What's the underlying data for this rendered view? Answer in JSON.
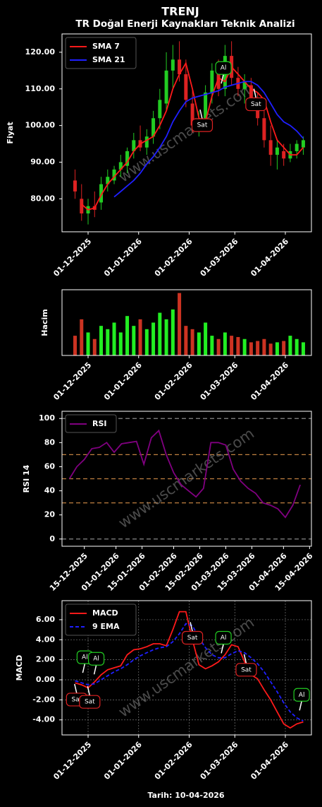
{
  "title": "TRENJ",
  "subtitle": "TR Doğal Enerji Kaynakları Teknik Analizi",
  "xlabel": "Tarih: 10-04-2026",
  "watermark": "www.uscmarkets.com",
  "chart_data": [
    {
      "type": "candlestick",
      "ylabel": "Fiyat",
      "legend": "upper left",
      "x": [
        "23-11-2025",
        "27-11-2025",
        "01-12-2025",
        "05-12-2025",
        "09-12-2025",
        "13-12-2025",
        "17-12-2025",
        "21-12-2025",
        "25-12-2025",
        "29-12-2025",
        "02-01-2026",
        "06-01-2026",
        "10-01-2026",
        "14-01-2026",
        "18-01-2026",
        "22-01-2026",
        "26-01-2026",
        "30-01-2026",
        "03-02-2026",
        "07-02-2026",
        "11-02-2026",
        "15-02-2026",
        "19-02-2026",
        "23-02-2026",
        "27-02-2026",
        "03-03-2026",
        "07-03-2026",
        "11-03-2026",
        "15-03-2026",
        "19-03-2026",
        "23-03-2026",
        "27-03-2026",
        "31-03-2026",
        "04-04-2026",
        "08-04-2026",
        "12-04-2026"
      ],
      "candles": {
        "up_color": "#22cc22",
        "down_color": "#dd2222",
        "open": [
          85,
          80,
          76,
          78,
          79,
          84,
          85,
          88,
          89,
          93,
          96,
          94,
          97,
          102,
          106,
          115,
          118,
          114,
          106,
          100,
          102,
          109,
          114,
          110,
          119,
          113,
          110,
          111,
          105,
          102,
          96,
          92,
          93,
          91,
          93,
          94
        ],
        "high": [
          88,
          84,
          80,
          82,
          86,
          88,
          89,
          92,
          94,
          98,
          100,
          99,
          104,
          110,
          120,
          122,
          123,
          118,
          110,
          104,
          111,
          117,
          118,
          122,
          123,
          116,
          114,
          113,
          109,
          104,
          100,
          96,
          95,
          95,
          96,
          97
        ],
        "low": [
          80,
          74,
          73,
          75,
          77,
          82,
          84,
          86,
          87,
          91,
          93,
          92,
          95,
          99,
          104,
          110,
          112,
          105,
          98,
          97,
          100,
          106,
          108,
          108,
          111,
          108,
          106,
          104,
          100,
          94,
          89,
          88,
          89,
          90,
          91,
          92
        ],
        "close": [
          82,
          76,
          78,
          77,
          84,
          86,
          88,
          90,
          93,
          96,
          94,
          97,
          102,
          107,
          115,
          118,
          114,
          107,
          100,
          102,
          109,
          115,
          110,
          119,
          113,
          110,
          112,
          105,
          102,
          96,
          92,
          94,
          91,
          93,
          95,
          96
        ]
      },
      "series": [
        {
          "name": "SMA 7",
          "color": "#ff1a1a",
          "values": [
            null,
            78.5,
            77,
            77.5,
            81,
            84,
            86,
            88,
            90,
            93,
            95,
            96,
            97,
            100,
            104,
            110,
            114,
            117,
            110,
            102,
            101,
            108,
            113,
            112,
            116,
            114,
            112,
            110,
            109,
            107,
            101,
            96,
            94,
            92,
            92,
            94
          ]
        },
        {
          "name": "SMA 21",
          "color": "#1f1fff",
          "values": [
            null,
            null,
            null,
            null,
            null,
            null,
            80.5,
            82,
            83.5,
            85,
            87,
            89.5,
            91.5,
            94,
            97,
            101,
            104,
            106.5,
            107.5,
            108,
            108.5,
            109,
            109.5,
            110.5,
            111,
            111.5,
            112,
            112,
            111,
            109,
            106,
            103,
            101,
            100,
            98.5,
            96.5
          ]
        }
      ],
      "signals": [
        {
          "text": "Al",
          "x": "22-02-2026",
          "y": 115.7,
          "color": "#22cc22"
        },
        {
          "text": "Sat",
          "x": "09-02-2026",
          "y": 100.1,
          "color": "#dd2222"
        },
        {
          "text": "Sat",
          "x": "14-03-2026",
          "y": 105.8,
          "color": "#dd2222"
        }
      ],
      "xlim": [
        "15-11-2025",
        "17-04-2026"
      ],
      "xticks": [
        "01-12-2025",
        "01-01-2026",
        "01-02-2026",
        "01-03-2026",
        "01-04-2026"
      ],
      "ylim": [
        71,
        125
      ],
      "yticks": [
        {
          "value": 80,
          "label": "80.00"
        },
        {
          "value": 90,
          "label": "90.00"
        },
        {
          "value": 100,
          "label": "100.00"
        },
        {
          "value": 110,
          "label": "110.00"
        },
        {
          "value": 120,
          "label": "120.00"
        }
      ]
    },
    {
      "type": "bar",
      "ylabel": "Hacim",
      "x": [
        "23-11-2025",
        "27-11-2025",
        "01-12-2025",
        "05-12-2025",
        "09-12-2025",
        "13-12-2025",
        "17-12-2025",
        "21-12-2025",
        "25-12-2025",
        "29-12-2025",
        "02-01-2026",
        "06-01-2026",
        "10-01-2026",
        "14-01-2026",
        "18-01-2026",
        "22-01-2026",
        "26-01-2026",
        "30-01-2026",
        "03-02-2026",
        "07-02-2026",
        "11-02-2026",
        "15-02-2026",
        "19-02-2026",
        "23-02-2026",
        "27-02-2026",
        "03-03-2026",
        "07-03-2026",
        "11-03-2026",
        "15-03-2026",
        "19-03-2026",
        "23-03-2026",
        "27-03-2026",
        "31-03-2026",
        "04-04-2026",
        "08-04-2026",
        "12-04-2026"
      ],
      "values": [
        30,
        55,
        35,
        25,
        45,
        40,
        50,
        35,
        60,
        45,
        55,
        40,
        50,
        65,
        55,
        70,
        95,
        45,
        40,
        35,
        50,
        30,
        25,
        35,
        30,
        28,
        25,
        20,
        22,
        25,
        18,
        20,
        22,
        30,
        25,
        20
      ],
      "xlim": [
        "15-11-2025",
        "17-04-2026"
      ],
      "xticks": [
        "01-12-2025",
        "01-01-2026",
        "01-02-2026",
        "01-03-2026",
        "01-04-2026"
      ],
      "ylim": [
        0,
        100
      ]
    },
    {
      "type": "line",
      "ylabel": "RSI 14",
      "legend": "upper left",
      "x": [
        "07-12-2025",
        "11-12-2025",
        "15-12-2025",
        "19-12-2025",
        "23-12-2025",
        "27-12-2025",
        "31-12-2025",
        "04-01-2026",
        "08-01-2026",
        "12-01-2026",
        "16-01-2026",
        "20-01-2026",
        "24-01-2026",
        "28-01-2026",
        "01-02-2026",
        "05-02-2026",
        "09-02-2026",
        "13-02-2026",
        "17-02-2026",
        "21-02-2026",
        "25-02-2026",
        "01-03-2026",
        "05-03-2026",
        "09-03-2026",
        "13-03-2026",
        "17-03-2026",
        "21-03-2026",
        "25-03-2026",
        "29-03-2026",
        "02-04-2026",
        "06-04-2026",
        "10-04-2026"
      ],
      "series": [
        {
          "name": "RSI",
          "color": "#800080",
          "values": [
            50,
            60,
            66,
            75,
            76,
            80,
            72,
            79,
            80,
            81,
            62,
            84,
            90,
            70,
            55,
            45,
            40,
            35,
            42,
            80,
            80,
            78,
            58,
            48,
            42,
            38,
            30,
            28,
            25,
            18,
            28,
            45
          ]
        }
      ],
      "levels": [
        {
          "value": 0,
          "color": "#888888"
        },
        {
          "value": 30,
          "color": "#c08040"
        },
        {
          "value": 50,
          "color": "#c08040"
        },
        {
          "value": 70,
          "color": "#c08040"
        },
        {
          "value": 100,
          "color": "#888888"
        }
      ],
      "xlim": [
        "03-12-2025",
        "16-04-2026"
      ],
      "xticks": [
        "15-12-2025",
        "01-01-2026",
        "15-01-2026",
        "01-02-2026",
        "15-02-2026",
        "01-03-2026",
        "15-03-2026",
        "01-04-2026",
        "15-04-2026"
      ],
      "ylim": [
        -6,
        106
      ],
      "yticks": [
        0,
        20,
        40,
        60,
        80,
        100
      ]
    },
    {
      "type": "line",
      "ylabel": "MACD",
      "legend": "upper left",
      "grid": true,
      "x": [
        "23-11-2025",
        "27-11-2025",
        "01-12-2025",
        "05-12-2025",
        "09-12-2025",
        "13-12-2025",
        "17-12-2025",
        "21-12-2025",
        "25-12-2025",
        "29-12-2025",
        "02-01-2026",
        "06-01-2026",
        "10-01-2026",
        "14-01-2026",
        "18-01-2026",
        "22-01-2026",
        "26-01-2026",
        "30-01-2026",
        "03-02-2026",
        "07-02-2026",
        "11-02-2026",
        "15-02-2026",
        "19-02-2026",
        "23-02-2026",
        "27-02-2026",
        "03-03-2026",
        "07-03-2026",
        "11-03-2026",
        "15-03-2026",
        "19-03-2026",
        "23-03-2026",
        "27-03-2026",
        "31-03-2026",
        "04-04-2026",
        "08-04-2026",
        "12-04-2026"
      ],
      "series": [
        {
          "name": "MACD",
          "color": "#ff1a1a",
          "values": [
            -0.3,
            -0.5,
            -0.8,
            -0.2,
            0.5,
            1.0,
            1.2,
            1.4,
            2.5,
            3.0,
            3.1,
            3.3,
            3.6,
            3.6,
            3.4,
            5.0,
            6.8,
            6.8,
            4.0,
            1.5,
            1.1,
            1.4,
            1.8,
            2.5,
            3.5,
            3.3,
            1.8,
            0.5,
            0.1,
            -1.0,
            -2.0,
            -3.2,
            -4.4,
            -4.8,
            -4.4,
            -4.2
          ]
        },
        {
          "name": "9 EMA",
          "color": "#1f1fff",
          "dashed": true,
          "values": [
            -0.1,
            -0.3,
            -0.5,
            -0.4,
            0.0,
            0.4,
            0.8,
            1.1,
            1.5,
            2.0,
            2.4,
            2.7,
            3.0,
            3.2,
            3.3,
            3.8,
            4.6,
            5.6,
            5.4,
            4.2,
            3.2,
            2.5,
            2.2,
            2.2,
            2.6,
            2.9,
            2.7,
            2.2,
            1.6,
            0.8,
            -0.2,
            -1.2,
            -2.3,
            -3.2,
            -3.8,
            -4.1
          ]
        }
      ],
      "signals": [
        {
          "text": "Al",
          "x": "29-11-2025",
          "y": 2.25,
          "color": "#22cc22"
        },
        {
          "text": "Al",
          "x": "06-12-2025",
          "y": 2.1,
          "color": "#22cc22"
        },
        {
          "text": "Sat",
          "x": "24-11-2025",
          "y": -1.97,
          "color": "#dd2222"
        },
        {
          "text": "Sat",
          "x": "02-12-2025",
          "y": -2.2,
          "color": "#dd2222"
        },
        {
          "text": "Sat",
          "x": "03-02-2026",
          "y": 4.2,
          "color": "#dd2222"
        },
        {
          "text": "Al",
          "x": "22-02-2026",
          "y": 4.2,
          "color": "#22cc22"
        },
        {
          "text": "Sat",
          "x": "08-03-2026",
          "y": 1.0,
          "color": "#dd2222"
        },
        {
          "text": "Al",
          "x": "11-04-2026",
          "y": -1.5,
          "color": "#22cc22"
        }
      ],
      "xlim": [
        "15-11-2025",
        "17-04-2026"
      ],
      "xticks": [
        "01-12-2025",
        "01-01-2026",
        "01-02-2026",
        "01-03-2026",
        "01-04-2026"
      ],
      "ylim": [
        -5.5,
        7.9
      ],
      "yticks": [
        {
          "value": -4,
          "label": "-4.00"
        },
        {
          "value": -2,
          "label": "-2.00"
        },
        {
          "value": 0,
          "label": "0.00"
        },
        {
          "value": 2,
          "label": "2.00"
        },
        {
          "value": 4,
          "label": "4.00"
        },
        {
          "value": 6,
          "label": "6.00"
        }
      ]
    }
  ]
}
